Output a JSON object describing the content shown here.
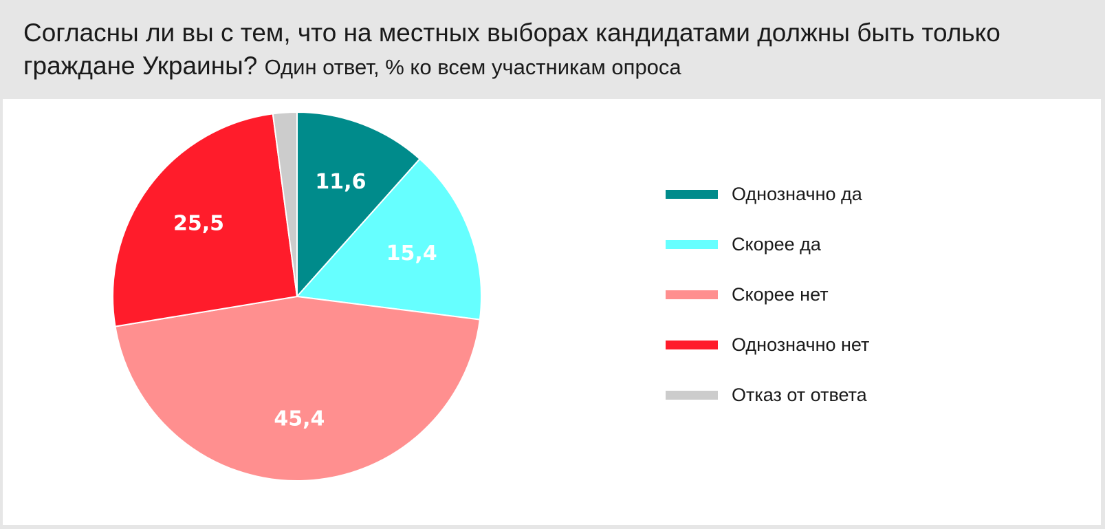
{
  "header": {
    "title": "Согласны ли вы с тем, что на местных выборах кандидатами должны быть только граждане Украины?",
    "subtitle": "Один ответ, % ко всем участникам опроса"
  },
  "chart_data": {
    "type": "pie",
    "title": "Согласны ли вы с тем, что на местных выборах кандидатами должны быть только граждане Украины?",
    "subtitle": "Один ответ, % ко всем участникам опроса",
    "start_angle": "12 o'clock",
    "direction": "clockwise",
    "legend_position": "right",
    "slices": [
      {
        "name": "Однозначно да",
        "value": 11.6,
        "label": "11,6",
        "color": "#008b8b"
      },
      {
        "name": "Скорее да",
        "value": 15.4,
        "label": "15,4",
        "color": "#66ffff"
      },
      {
        "name": "Скорее нет",
        "value": 45.4,
        "label": "45,4",
        "color": "#ff8f8f"
      },
      {
        "name": "Однозначно нет",
        "value": 25.5,
        "label": "25,5",
        "color": "#ff1c2b"
      },
      {
        "name": "Отказ от ответа",
        "value": 2.1,
        "label": "",
        "color": "#cccccc"
      }
    ]
  }
}
